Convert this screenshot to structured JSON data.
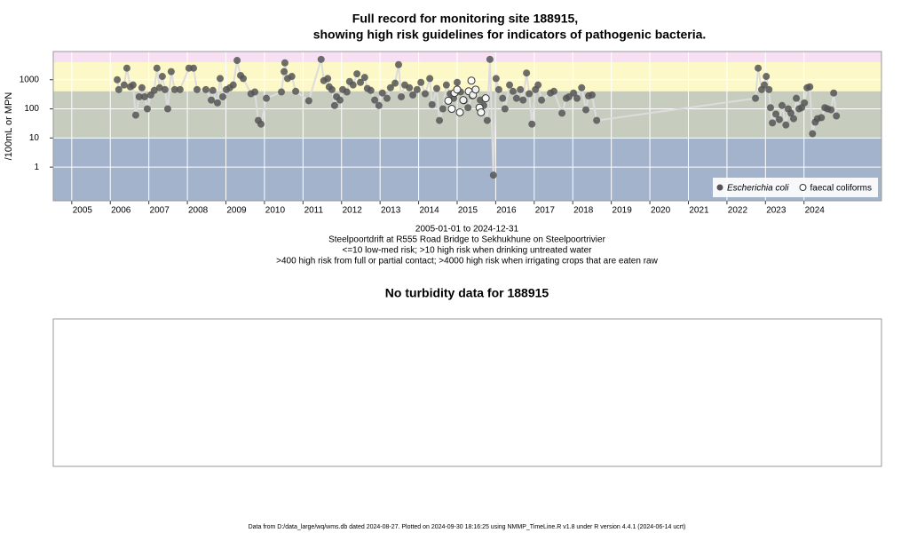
{
  "chart_data": {
    "type": "scatter",
    "title": [
      "Full record for monitoring site 188915,",
      "showing high risk guidelines for indicators of pathogenic bacteria."
    ],
    "y_label": "/100mL or MPN",
    "log_y": true,
    "xlim": [
      2004.52,
      2026.01
    ],
    "ylim": [
      0.07,
      9300
    ],
    "xticks": [
      2005,
      2006,
      2007,
      2008,
      2009,
      2010,
      2011,
      2012,
      2013,
      2014,
      2015,
      2016,
      2017,
      2018,
      2019,
      2020,
      2021,
      2022,
      2023,
      2024
    ],
    "yticks": [
      1,
      10,
      100,
      1000
    ],
    "grid": true,
    "legend": "bottom-right",
    "bands": [
      {
        "min": 4000,
        "color": "#f8e0f4"
      },
      {
        "min": 400,
        "max": 4000,
        "color": "#fdf8c8"
      },
      {
        "min": 10,
        "max": 400,
        "color": "#c6cdbf"
      },
      {
        "max": 10,
        "color": "#a3b3cc"
      }
    ],
    "series": [
      {
        "name": "Escherichia coli",
        "color": "#555555",
        "marker": "filled",
        "line_color": "#dcdcdc",
        "x": [
          2006.18,
          2006.22,
          2006.36,
          2006.43,
          2006.52,
          2006.59,
          2006.66,
          2006.75,
          2006.82,
          2006.89,
          2006.96,
          2007.05,
          2007.14,
          2007.21,
          2007.28,
          2007.35,
          2007.42,
          2007.49,
          2007.58,
          2007.67,
          2007.81,
          2008.04,
          2008.16,
          2008.25,
          2008.48,
          2008.62,
          2008.66,
          2008.78,
          2008.85,
          2008.92,
          2009.01,
          2009.1,
          2009.19,
          2009.29,
          2009.38,
          2009.45,
          2009.65,
          2009.75,
          2009.84,
          2009.91,
          2010.05,
          2010.44,
          2010.51,
          2010.53,
          2010.6,
          2010.71,
          2010.81,
          2011.15,
          2011.47,
          2011.54,
          2011.64,
          2011.68,
          2011.75,
          2011.82,
          2011.87,
          2011.96,
          2012.03,
          2012.14,
          2012.21,
          2012.3,
          2012.4,
          2012.49,
          2012.6,
          2012.67,
          2012.76,
          2012.86,
          2012.97,
          2013.06,
          2013.18,
          2013.27,
          2013.39,
          2013.48,
          2013.55,
          2013.64,
          2013.76,
          2013.85,
          2013.96,
          2014.06,
          2014.17,
          2014.29,
          2014.35,
          2014.47,
          2014.54,
          2014.63,
          2014.72,
          2014.82,
          2014.91,
          2015.0,
          2015.09,
          2015.18,
          2015.28,
          2015.39,
          2015.48,
          2015.6,
          2015.69,
          2015.78,
          2015.85,
          2015.94,
          2016.01,
          2016.08,
          2016.18,
          2016.24,
          2016.36,
          2016.45,
          2016.54,
          2016.64,
          2016.71,
          2016.8,
          2016.87,
          2016.94,
          2017.03,
          2017.1,
          2017.19,
          2017.42,
          2017.51,
          2017.72,
          2017.83,
          2017.9,
          2018.02,
          2018.11,
          2018.23,
          2018.34,
          2018.41,
          2018.5,
          2018.62,
          2022.74,
          2022.81,
          2022.9,
          2022.97,
          2023.02,
          2023.09,
          2023.13,
          2023.18,
          2023.27,
          2023.36,
          2023.43,
          2023.53,
          2023.59,
          2023.66,
          2023.73,
          2023.8,
          2023.87,
          2023.94,
          2024.01,
          2024.08,
          2024.15,
          2024.22,
          2024.29,
          2024.35,
          2024.45,
          2024.54,
          2024.61,
          2024.7,
          2024.77,
          2024.84
        ],
        "values": [
          1000,
          460,
          660,
          2500,
          570,
          660,
          61,
          260,
          530,
          260,
          100,
          300,
          430,
          2500,
          530,
          1300,
          460,
          100,
          1900,
          460,
          460,
          2500,
          2500,
          460,
          460,
          200,
          430,
          160,
          1100,
          260,
          460,
          530,
          660,
          4600,
          1400,
          1100,
          330,
          380,
          40,
          30,
          230,
          380,
          1900,
          3800,
          1100,
          1300,
          400,
          190,
          5000,
          930,
          1100,
          570,
          460,
          130,
          260,
          200,
          460,
          380,
          870,
          660,
          1600,
          810,
          1200,
          500,
          430,
          200,
          130,
          350,
          230,
          530,
          760,
          3300,
          260,
          660,
          530,
          300,
          460,
          810,
          330,
          1100,
          140,
          500,
          40,
          100,
          660,
          330,
          230,
          810,
          380,
          190,
          110,
          280,
          460,
          200,
          130,
          40,
          5000,
          0.53,
          1100,
          460,
          230,
          100,
          660,
          400,
          230,
          460,
          200,
          1700,
          330,
          30,
          460,
          660,
          200,
          350,
          400,
          71,
          230,
          260,
          350,
          230,
          530,
          93,
          280,
          300,
          40,
          230,
          2500,
          460,
          660,
          1300,
          460,
          110,
          33,
          66,
          43,
          130,
          28,
          100,
          71,
          46,
          230,
          100,
          110,
          160,
          530,
          570,
          14,
          35,
          46,
          50,
          110,
          100,
          93,
          350,
          57
        ]
      },
      {
        "name": "faecal coliforms",
        "color": "#333333",
        "marker": "open",
        "x": [
          2014.77,
          2014.86,
          2014.93,
          2015.0,
          2015.07,
          2015.16,
          2015.3,
          2015.37,
          2015.41,
          2015.48,
          2015.58,
          2015.62,
          2015.74
        ],
        "values": [
          190,
          100,
          350,
          460,
          76,
          200,
          400,
          930,
          300,
          460,
          110,
          76,
          230
        ]
      }
    ],
    "notes": [
      "2005-01-01 to 2024-12-31",
      "Steelpoortdrift at R555 Road Bridge to Sekhukhune on Steelpoortrivier",
      "<=10 low-med risk; >10 high risk when drinking untreated water",
      ">400 high risk from full or partial contact; >4000 high risk when irrigating crops that are eaten raw"
    ]
  },
  "turbidity_panel": {
    "title": "No turbidity data for 188915"
  },
  "footer": "Data from D:/data_large/wq/wms.db dated 2024-08-27. Plotted on 2024-09-30 18:16:25 using NMMP_TimeLine.R v1.8 under R version 4.4.1 (2024-06-14 ucrt)"
}
